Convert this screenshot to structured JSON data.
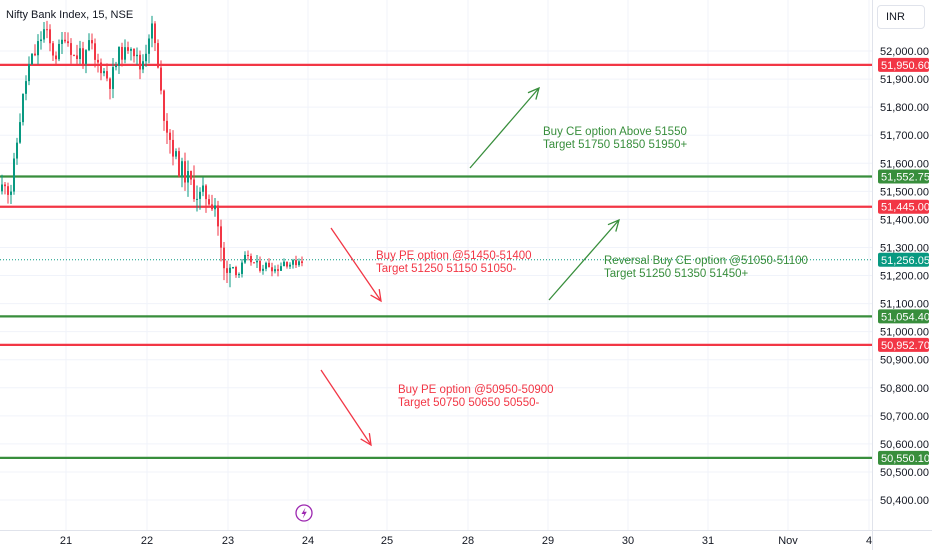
{
  "header": {
    "symbol_title": "Nifty Bank Index, 15, NSE",
    "currency": "INR"
  },
  "chart_data": {
    "type": "candlestick",
    "ylim": [
      50350,
      52080
    ],
    "y_ticks": [
      "52,000.00",
      "51,900.00",
      "51,800.00",
      "51,700.00",
      "51,600.00",
      "51,500.00",
      "51,400.00",
      "51,300.00",
      "51,200.00",
      "51,100.00",
      "51,000.00",
      "50,900.00",
      "50,800.00",
      "50,700.00",
      "50,600.00",
      "50,500.00",
      "50,400.00"
    ],
    "y_tick_values": [
      52000,
      51900,
      51800,
      51700,
      51600,
      51500,
      51400,
      51300,
      51200,
      51100,
      51000,
      50900,
      50800,
      50700,
      50600,
      50500,
      50400
    ],
    "x_ticks": [
      "21",
      "22",
      "23",
      "24",
      "25",
      "28",
      "29",
      "30",
      "31",
      "Nov",
      "4"
    ],
    "current_price": {
      "label": "51,256.05",
      "value": 51256.05,
      "color": "#089981"
    },
    "levels": [
      {
        "label": "51,950.60",
        "value": 51950.6,
        "color": "#f23645"
      },
      {
        "label": "51,552.75",
        "value": 51552.75,
        "color": "#388e3c"
      },
      {
        "label": "51,445.00",
        "value": 51445.0,
        "color": "#f23645"
      },
      {
        "label": "51,054.40",
        "value": 51054.4,
        "color": "#388e3c"
      },
      {
        "label": "50,952.70",
        "value": 50952.7,
        "color": "#f23645"
      },
      {
        "label": "50,550.10",
        "value": 50550.1,
        "color": "#388e3c"
      }
    ],
    "annotations": [
      {
        "lines": [
          "Buy CE option Above 51550",
          "Target 51750 51850 51950+"
        ],
        "color": "#388e3c"
      },
      {
        "lines": [
          "Buy PE option @51450-51400",
          "Target 51250 51150 51050-"
        ],
        "color": "#f23645"
      },
      {
        "lines": [
          "Reversal Buy CE option @51050-51100",
          "Target 51250 51350 51450+"
        ],
        "color": "#388e3c"
      },
      {
        "lines": [
          "Buy PE option @50950-50900",
          "Target 50750 50650 50550-"
        ],
        "color": "#f23645"
      }
    ],
    "candle_colors": {
      "up": "#089981",
      "down": "#f23645"
    }
  }
}
